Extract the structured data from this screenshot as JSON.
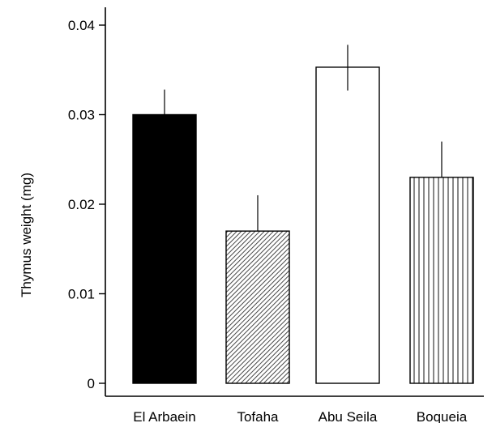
{
  "chart_data": {
    "type": "bar",
    "title": "",
    "xlabel": "",
    "ylabel": "Thymus weight (mg)",
    "categories": [
      "El Arbaein",
      "Tofaha",
      "Abu Seila",
      "Boqueia"
    ],
    "values": [
      0.03,
      0.017,
      0.0353,
      0.023
    ],
    "error_upper": [
      0.0328,
      0.021,
      0.0378,
      0.027
    ],
    "error_lower": [
      null,
      null,
      0.0327,
      null
    ],
    "fills": [
      "solid-black",
      "diagonal-hatch",
      "white",
      "vertical-lines"
    ],
    "ylim": [
      0,
      0.04
    ],
    "yticks": [
      "0",
      "0.01",
      "0.02",
      "0.03",
      "0.04"
    ],
    "ytick_values": [
      0,
      0.01,
      0.02,
      0.03,
      0.04
    ],
    "grid": false,
    "legend": "none"
  }
}
